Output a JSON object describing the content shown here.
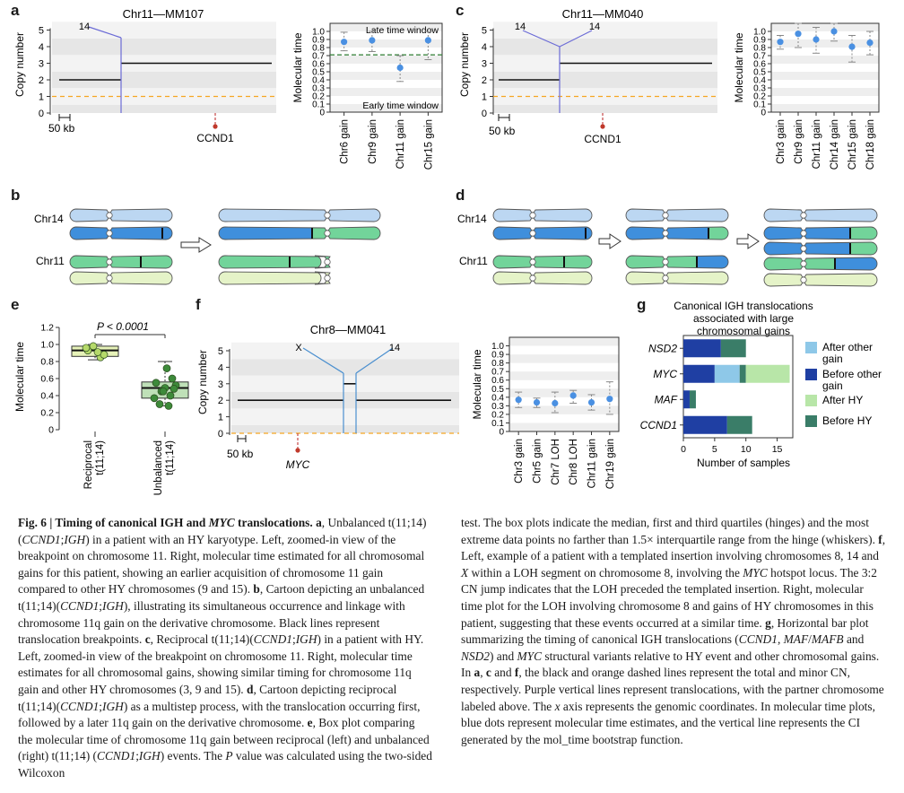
{
  "panels": {
    "a": {
      "letter": "a",
      "cn_title": "Chr11—MM107",
      "cn_ylabel": "Copy number",
      "cn_yticks": [
        "0",
        "1",
        "2",
        "3",
        "4",
        "5"
      ],
      "partner_label": "14",
      "scale_label": "50 kb",
      "gene_label": "CCND1",
      "mt_ylabel": "Molecular time",
      "mt_yticks": [
        "0",
        "0.1",
        "0.2",
        "0.3",
        "0.4",
        "0.5",
        "0.6",
        "0.7",
        "0.8",
        "0.9",
        "1.0"
      ],
      "late_window": "Late time window",
      "early_window": "Early time window",
      "mt_categories": [
        "Chr6 gain",
        "Chr9 gain",
        "Chr11 gain",
        "Chr15 gain"
      ],
      "mt_values": [
        0.87,
        0.89,
        0.55,
        0.89
      ],
      "mt_low": [
        0.76,
        0.75,
        0.38,
        0.65
      ],
      "mt_high": [
        0.99,
        1.0,
        0.7,
        1.0
      ]
    },
    "c": {
      "letter": "c",
      "cn_title": "Chr11—MM040",
      "cn_ylabel": "Copy number",
      "cn_yticks": [
        "0",
        "1",
        "2",
        "3",
        "4",
        "5"
      ],
      "partner_left": "14",
      "partner_right": "14",
      "scale_label": "50 kb",
      "gene_label": "CCND1",
      "mt_ylabel": "Molecular time",
      "mt_yticks": [
        "0",
        "0.1",
        "0.2",
        "0.3",
        "0.4",
        "0.5",
        "0.6",
        "0.7",
        "0.8",
        "0.9",
        "1.0"
      ],
      "mt_categories": [
        "Chr3 gain",
        "Chr9 gain",
        "Chr11 gain",
        "Chr14 gain",
        "Chr15 gain",
        "Chr18 gain"
      ],
      "mt_values": [
        0.87,
        0.97,
        0.9,
        1.0,
        0.81,
        0.86
      ],
      "mt_low": [
        0.78,
        0.8,
        0.73,
        0.88,
        0.62,
        0.71
      ],
      "mt_high": [
        0.95,
        1.1,
        1.05,
        1.1,
        0.95,
        1.0
      ]
    },
    "b": {
      "letter": "b",
      "chr14": "Chr14",
      "chr11": "Chr11"
    },
    "d": {
      "letter": "d",
      "chr14": "Chr14",
      "chr11": "Chr11"
    },
    "e": {
      "letter": "e",
      "ylabel": "Molecular time",
      "yticks": [
        "0",
        "0.2",
        "0.4",
        "0.6",
        "0.8",
        "1.0",
        "1.2"
      ],
      "pvalue": "P < 0.0001",
      "group1": "Reciprocal t(11;14)",
      "group2": "Unbalanced t(11;14)"
    },
    "f": {
      "letter": "f",
      "cn_title": "Chr8—MM041",
      "cn_ylabel": "Copy number",
      "cn_yticks": [
        "0",
        "1",
        "2",
        "3",
        "4",
        "5"
      ],
      "partner_left": "X",
      "partner_right": "14",
      "scale_label": "50 kb",
      "gene_label": "MYC",
      "mt_ylabel": "Molecular time",
      "mt_yticks": [
        "0",
        "0.1",
        "0.2",
        "0.3",
        "0.4",
        "0.5",
        "0.6",
        "0.7",
        "0.8",
        "0.9",
        "1.0"
      ],
      "mt_categories": [
        "Chr3 gain",
        "Chr5 gain",
        "Chr7 LOH",
        "Chr8 LOH",
        "Chr11 gain",
        "Chr19 gain"
      ],
      "mt_values": [
        0.37,
        0.34,
        0.33,
        0.42,
        0.34,
        0.38
      ],
      "mt_low": [
        0.28,
        0.28,
        0.22,
        0.33,
        0.25,
        0.2
      ],
      "mt_high": [
        0.46,
        0.39,
        0.46,
        0.48,
        0.43,
        0.58
      ]
    },
    "g": {
      "letter": "g",
      "title_line1": "Canonical IGH translocations",
      "title_line2": "associated with large",
      "title_line3": "chromosomal gains",
      "xlabel": "Number of samples",
      "xticks": [
        "0",
        "5",
        "10",
        "15"
      ],
      "categories": [
        "NSD2",
        "MYC",
        "MAF",
        "CCND1"
      ],
      "legend": [
        "After other gain",
        "Before other gain",
        "After HY",
        "Before HY"
      ],
      "legend_lines": [
        [
          "After other",
          "gain"
        ],
        [
          "Before other",
          "gain"
        ],
        [
          "After HY"
        ],
        [
          "Before HY"
        ]
      ]
    }
  },
  "colors": {
    "blue_dot": "#4a90e2",
    "partner_line": "#6b6bd6",
    "minor_cn": "#f5a623",
    "late_line": "#2e7d32",
    "after_other": "#8ec8e8",
    "before_other": "#1f3fa3",
    "after_hy": "#b8e6a8",
    "before_hy": "#3a7d68",
    "chr14_light": "#bcd7f2",
    "chr14_dark": "#3f8fdc",
    "chr11_green": "#72d49a",
    "chr11_light": "#e5f3c8"
  },
  "chart_data": [
    {
      "panel": "a-right",
      "type": "scatter",
      "title": "",
      "xlabel": "",
      "ylabel": "Molecular time",
      "categories": [
        "Chr6 gain",
        "Chr9 gain",
        "Chr11 gain",
        "Chr15 gain"
      ],
      "values": [
        0.87,
        0.89,
        0.55,
        0.89
      ],
      "ci_low": [
        0.76,
        0.75,
        0.38,
        0.65
      ],
      "ci_high": [
        0.99,
        1.0,
        0.7,
        1.0
      ],
      "ylim": [
        0,
        1.1
      ],
      "hline": 0.71
    },
    {
      "panel": "c-right",
      "type": "scatter",
      "title": "",
      "xlabel": "",
      "ylabel": "Molecular time",
      "categories": [
        "Chr3 gain",
        "Chr9 gain",
        "Chr11 gain",
        "Chr14 gain",
        "Chr15 gain",
        "Chr18 gain"
      ],
      "values": [
        0.87,
        0.97,
        0.9,
        1.0,
        0.81,
        0.86
      ],
      "ci_low": [
        0.78,
        0.8,
        0.73,
        0.88,
        0.62,
        0.71
      ],
      "ci_high": [
        0.95,
        1.1,
        1.05,
        1.1,
        0.95,
        1.0
      ],
      "ylim": [
        0,
        1.1
      ]
    },
    {
      "panel": "e",
      "type": "box",
      "title": "",
      "ylabel": "Molecular time",
      "categories": [
        "Reciprocal t(11;14)",
        "Unbalanced t(11;14)"
      ],
      "groups": [
        {
          "q1": 0.86,
          "median": 0.93,
          "q3": 0.98,
          "whisker_low": 0.82,
          "whisker_high": 1.0,
          "points": [
            0.93,
            0.85,
            0.98,
            0.88,
            0.96,
            0.91
          ]
        },
        {
          "q1": 0.37,
          "median": 0.49,
          "q3": 0.56,
          "whisker_low": 0.28,
          "whisker_high": 0.8,
          "points": [
            0.55,
            0.6,
            0.49,
            0.45,
            0.52,
            0.72,
            0.37,
            0.4,
            0.3,
            0.28,
            0.48,
            0.45
          ]
        }
      ],
      "ylim": [
        0,
        1.2
      ]
    },
    {
      "panel": "f-right",
      "type": "scatter",
      "title": "",
      "ylabel": "Molecular time",
      "categories": [
        "Chr3 gain",
        "Chr5 gain",
        "Chr7 LOH",
        "Chr8 LOH",
        "Chr11 gain",
        "Chr19 gain"
      ],
      "values": [
        0.37,
        0.34,
        0.33,
        0.42,
        0.34,
        0.38
      ],
      "ci_low": [
        0.28,
        0.28,
        0.22,
        0.33,
        0.25,
        0.2
      ],
      "ci_high": [
        0.46,
        0.39,
        0.46,
        0.48,
        0.43,
        0.58
      ],
      "ylim": [
        0,
        1.1
      ]
    },
    {
      "panel": "g",
      "type": "bar",
      "orientation": "horizontal",
      "stacked": true,
      "title": "Canonical IGH translocations associated with large chromosomal gains",
      "xlabel": "Number of samples",
      "categories": [
        "NSD2",
        "MYC",
        "MAF",
        "CCND1"
      ],
      "series": [
        {
          "name": "Before other gain",
          "values": [
            6,
            5,
            1,
            7
          ]
        },
        {
          "name": "After other gain",
          "values": [
            0,
            4,
            0,
            0
          ]
        },
        {
          "name": "Before HY",
          "values": [
            4,
            1,
            1,
            4
          ]
        },
        {
          "name": "After HY",
          "values": [
            0,
            7,
            0,
            0
          ]
        }
      ],
      "xlim": [
        0,
        17.5
      ],
      "legend_position": "right"
    }
  ],
  "caption": {
    "title": "Fig. 6 | Timing of canonical IGH and MYC translocations.",
    "left_html": "<span class=\"cap-title\">Fig. 6 | Timing of canonical IGH and <i>MYC</i> translocations.</span> <b>a</b>, Unbalanced t(11;14)(<i>CCND1</i>;<i>IGH</i>) in a patient with an HY karyotype. Left, zoomed-in view of the breakpoint on chromosome 11. Right, molecular time estimated for all chromosomal gains for this patient, showing an earlier acquisition of chromosome 11 gain compared to other HY chromosomes (9 and 15). <b>b</b>, Cartoon depicting an unbalanced t(11;14)(<i>CCND1</i>;<i>IGH</i>), illustrating its simultaneous occurrence and linkage with chromosome 11q gain on the derivative chromosome. Black lines represent translocation breakpoints. <b>c</b>, Reciprocal t(11;14)(<i>CCND1</i>;<i>IGH</i>) in a patient with HY. Left, zoomed-in view of the breakpoint on chromosome 11. Right, molecular time estimates for all chromosomal gains, showing similar timing for chromosome 11q gain and other HY chromosomes (3, 9 and 15). <b>d</b>, Cartoon depicting reciprocal t(11;14)(<i>CCND1</i>;<i>IGH</i>) as a multistep process, with the translocation occurring first, followed by a later 11q gain on the derivative chromosome. <b>e</b>, Box plot comparing the molecular time of chromosome 11q gain between reciprocal (left) and unbalanced (right) t(11;14) (<i>CCND1</i>;<i>IGH</i>) events. The <i>P</i> value was calculated using the two-sided Wilcoxon",
    "right_html": "test. The box plots indicate the median, first and third quartiles (hinges) and the most extreme data points no farther than 1.5× interquartile range from the hinge (whiskers). <b>f</b>, Left, example of a patient with a templated insertion involving chromosomes 8, 14 and <i>X</i> within a LOH segment on chromosome 8, involving the <i>MYC</i> hotspot locus. The 3:2 CN jump indicates that the LOH preceded the templated insertion. Right, molecular time plot for the LOH involving chromosome 8 and gains of HY chromosomes in this patient, suggesting that these events occurred at a similar time. <b>g</b>, Horizontal bar plot summarizing the timing of canonical IGH translocations (<i>CCND1</i>, <i>MAF</i>/<i>MAFB</i> and <i>NSD2</i>) and <i>MYC</i> structural variants relative to HY event and other chromosomal gains. In <b>a</b>, <b>c</b> and <b>f</b>, the black and orange dashed lines represent the total and minor CN, respectively. Purple vertical lines represent translocations, with the partner chromosome labeled above. The <i>x</i> axis represents the genomic coordinates. In molecular time plots, blue dots represent molecular time estimates, and the vertical line represents the CI generated by the mol_time bootstrap function."
  }
}
